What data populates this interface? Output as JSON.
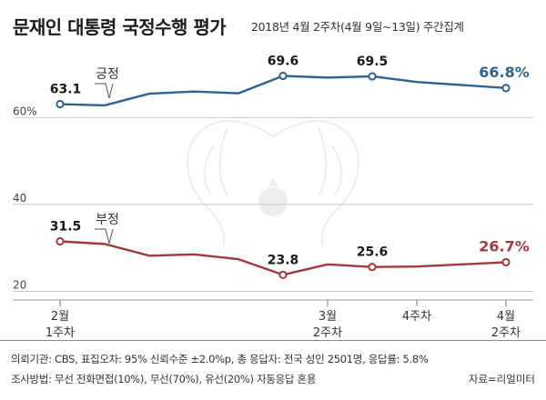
{
  "header": {
    "title": "문재인 대통령 국정수행 평가",
    "subtitle": "2018년 4월 2주차(4월 9일~13일) 주간집계"
  },
  "chart_data": {
    "type": "line",
    "x": [
      0,
      1,
      2,
      3,
      4,
      5,
      6,
      7,
      8,
      9,
      10
    ],
    "ylim": [
      18,
      72
    ],
    "yticks": [
      {
        "value": 60,
        "label": "60%"
      },
      {
        "value": 40,
        "label": "40"
      },
      {
        "value": 20,
        "label": "20"
      }
    ],
    "xticks": [
      {
        "x": 0,
        "lines": [
          "2월",
          "1주차"
        ]
      },
      {
        "x": 6,
        "lines": [
          "3월",
          "2주차"
        ]
      },
      {
        "x": 8,
        "lines": [
          "4주차"
        ]
      },
      {
        "x": 10,
        "lines": [
          "4월",
          "2주차"
        ]
      }
    ],
    "series": [
      {
        "name": "긍정",
        "color": "#2a6591",
        "values": [
          63.1,
          62.8,
          65.5,
          66.0,
          65.6,
          69.6,
          69.2,
          69.5,
          68.2,
          66.8
        ],
        "x": [
          0,
          1,
          2,
          3,
          4,
          5,
          6,
          7,
          8,
          10
        ],
        "labels": [
          {
            "index": 0,
            "text": "63.1"
          },
          {
            "index": 5,
            "text": "69.6"
          },
          {
            "index": 7,
            "text": "69.5"
          },
          {
            "index": 9,
            "text": "66.8%",
            "highlight": true
          }
        ]
      },
      {
        "name": "부정",
        "color": "#a5373a",
        "values": [
          31.5,
          30.9,
          28.2,
          28.5,
          27.4,
          23.8,
          26.2,
          25.6,
          25.7,
          26.7
        ],
        "x": [
          0,
          1,
          2,
          3,
          4,
          5,
          6,
          7,
          8,
          10
        ],
        "labels": [
          {
            "index": 0,
            "text": "31.5"
          },
          {
            "index": 5,
            "text": "23.8"
          },
          {
            "index": 7,
            "text": "25.6"
          },
          {
            "index": 9,
            "text": "26.7%",
            "highlight": true
          }
        ]
      }
    ]
  },
  "footer": {
    "line1": "의뢰기관: CBS, 표집오차: 95% 신뢰수준 ±2.0%p, 총 응답자: 전국 성인 2501명, 응답률: 5.8%",
    "line2": "조사방법: 무선 전화면접(10%), 무선(70%), 유선(20%) 자동응답 혼용",
    "source": "자료=리얼미터"
  }
}
